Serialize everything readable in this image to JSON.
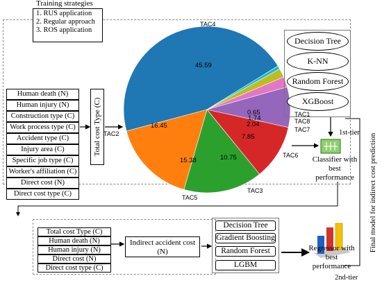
{
  "training": {
    "title": "Training strategies",
    "items": [
      "1. RUS application",
      "2. Regular approach",
      "3. ROS application"
    ]
  },
  "features_left": [
    "Human death (N)",
    "Human injury (N)",
    "Construction type (C)",
    "Work process type (C)",
    "Accident type (C)",
    "Injury area (C)",
    "Specific job type (C)",
    "Worker's affiliation (C)",
    "Direct cost (N)",
    "Direct cost type (C)"
  ],
  "target_label": "Total cost Type (C)",
  "classifiers": [
    "Decision Tree",
    "K-NN",
    "Random Forest",
    "XGBoost"
  ],
  "classifier_caption": "Classifier with best performance",
  "tier1": "1st-tier",
  "tier2": "2nd-tier",
  "final_label": "Final model for indirect cost prediction",
  "features_bottom": [
    "Total cost Type (C)",
    "Human death (N)",
    "Human injury (N)",
    "Direct cost (N)",
    "Direct cost type (C)"
  ],
  "output_label": "Indirect accident cost (N)",
  "regressors": [
    "Decision Tree",
    "Gradient Boosting",
    "Random Forest",
    "LGBM"
  ],
  "regressor_caption": "Regressor with best performance",
  "colors": {
    "TAC4": "#1f77b4",
    "TAC1": "#17becf",
    "TAC8": "#bcbd22",
    "TAC7": "#e377c2",
    "TAC6": "#9467bd",
    "TAC3": "#d62728",
    "TAC5": "#2ca02c",
    "TAC2": "#ff7f0e",
    "classifier_icon": "#8ecf6e",
    "regressor_icon_blue": "#1f5fbf",
    "regressor_icon_red": "#d0342c",
    "regressor_icon_yellow": "#f2c200"
  },
  "icons": [
    "classifier-icon",
    "regressor-bar-icon"
  ],
  "chart_data": {
    "type": "pie",
    "slices": [
      {
        "label": "TAC4",
        "value": 45.59,
        "value_label": "45.59"
      },
      {
        "label": "TAC1",
        "value": 0.65,
        "value_label": "0.65"
      },
      {
        "label": "TAC8",
        "value": 1.74,
        "value_label": "1.74"
      },
      {
        "label": "TAC7",
        "value": 2.04,
        "value_label": "2.04"
      },
      {
        "label": "TAC6",
        "value": 7.85,
        "value_label": "7.85"
      },
      {
        "label": "TAC3",
        "value": 10.75,
        "value_label": "10.75"
      },
      {
        "label": "TAC5",
        "value": 15.38,
        "value_label": "15.38"
      },
      {
        "label": "TAC2",
        "value": 16.45,
        "value_label": "16.45"
      }
    ]
  }
}
